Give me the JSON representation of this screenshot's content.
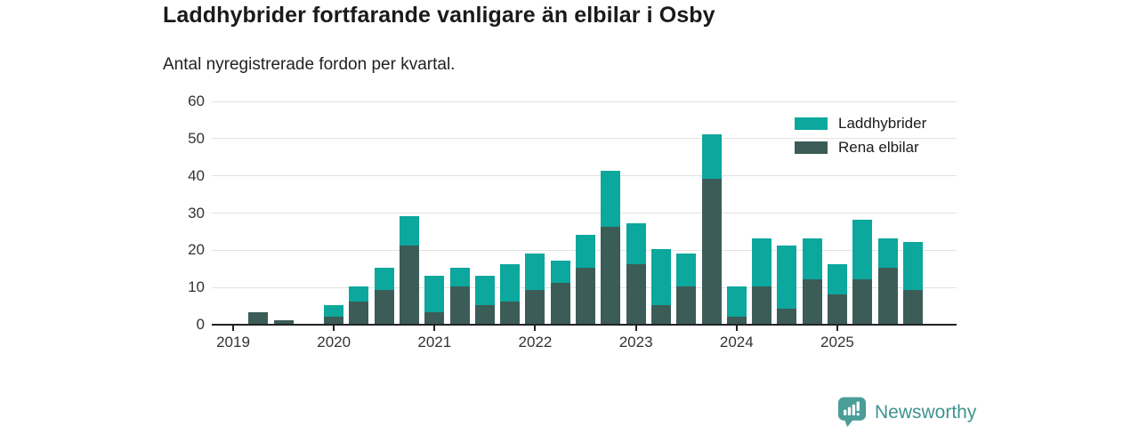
{
  "header": {
    "title": "Laddhybrider fortfarande vanligare än elbilar i Osby",
    "subtitle": "Antal nyregistrerade fordon per kvartal."
  },
  "chart_data": {
    "type": "bar",
    "stacked": true,
    "title": "Laddhybrider fortfarande vanligare än elbilar i Osby",
    "subtitle": "Antal nyregistrerade fordon per kvartal.",
    "categories": [
      "2019 Q1",
      "2019 Q2",
      "2019 Q3",
      "2019 Q4",
      "2020 Q1",
      "2020 Q2",
      "2020 Q3",
      "2020 Q4",
      "2021 Q1",
      "2021 Q2",
      "2021 Q3",
      "2021 Q4",
      "2022 Q1",
      "2022 Q2",
      "2022 Q3",
      "2022 Q4",
      "2023 Q1",
      "2023 Q2",
      "2023 Q3",
      "2023 Q4",
      "2024 Q1",
      "2024 Q2",
      "2024 Q3",
      "2024 Q4",
      "2025 Q1",
      "2025 Q2",
      "2025 Q3",
      "2025 Q4"
    ],
    "series": [
      {
        "name": "Laddhybrider",
        "color": "#0CA79D",
        "stack_position": "top",
        "values": [
          0,
          0,
          0,
          0,
          3,
          4,
          6,
          8,
          10,
          5,
          8,
          10,
          10,
          6,
          9,
          15,
          11,
          15,
          9,
          12,
          8,
          13,
          17,
          11,
          8,
          16,
          8,
          13
        ]
      },
      {
        "name": "Rena elbilar",
        "color": "#3C5C57",
        "stack_position": "bottom",
        "values": [
          0,
          3,
          1,
          0,
          2,
          6,
          9,
          21,
          3,
          10,
          5,
          6,
          9,
          11,
          15,
          26,
          16,
          5,
          10,
          39,
          2,
          10,
          4,
          12,
          8,
          12,
          15,
          9
        ]
      }
    ],
    "totals": [
      0,
      3,
      1,
      0,
      5,
      10,
      15,
      29,
      13,
      15,
      13,
      16,
      19,
      17,
      24,
      41,
      27,
      20,
      19,
      51,
      10,
      23,
      21,
      23,
      16,
      28,
      23,
      22
    ],
    "ylim": [
      0,
      60
    ],
    "y_ticks": [
      0,
      10,
      20,
      30,
      40,
      50,
      60
    ],
    "x_tick_labels": [
      "2019",
      "2020",
      "2021",
      "2022",
      "2023",
      "2024",
      "2025"
    ],
    "grid": true,
    "legend_position": "top-right"
  },
  "legend": {
    "items": [
      {
        "label": "Laddhybrider",
        "color": "#0CA79D"
      },
      {
        "label": "Rena elbilar",
        "color": "#3C5C57"
      }
    ]
  },
  "branding": {
    "logo_text": "Newsworthy",
    "logo_icon": "newsworthy-bar-chart-bubble-icon",
    "brand_color": "#3E938D",
    "icon_color": "#4A9D98"
  },
  "colors": {
    "laddhybrider": "#0CA79D",
    "rena_elbilar": "#3C5C57",
    "background": "#FFFFFF",
    "gridline": "#E2E2E2",
    "axis": "#222222"
  }
}
